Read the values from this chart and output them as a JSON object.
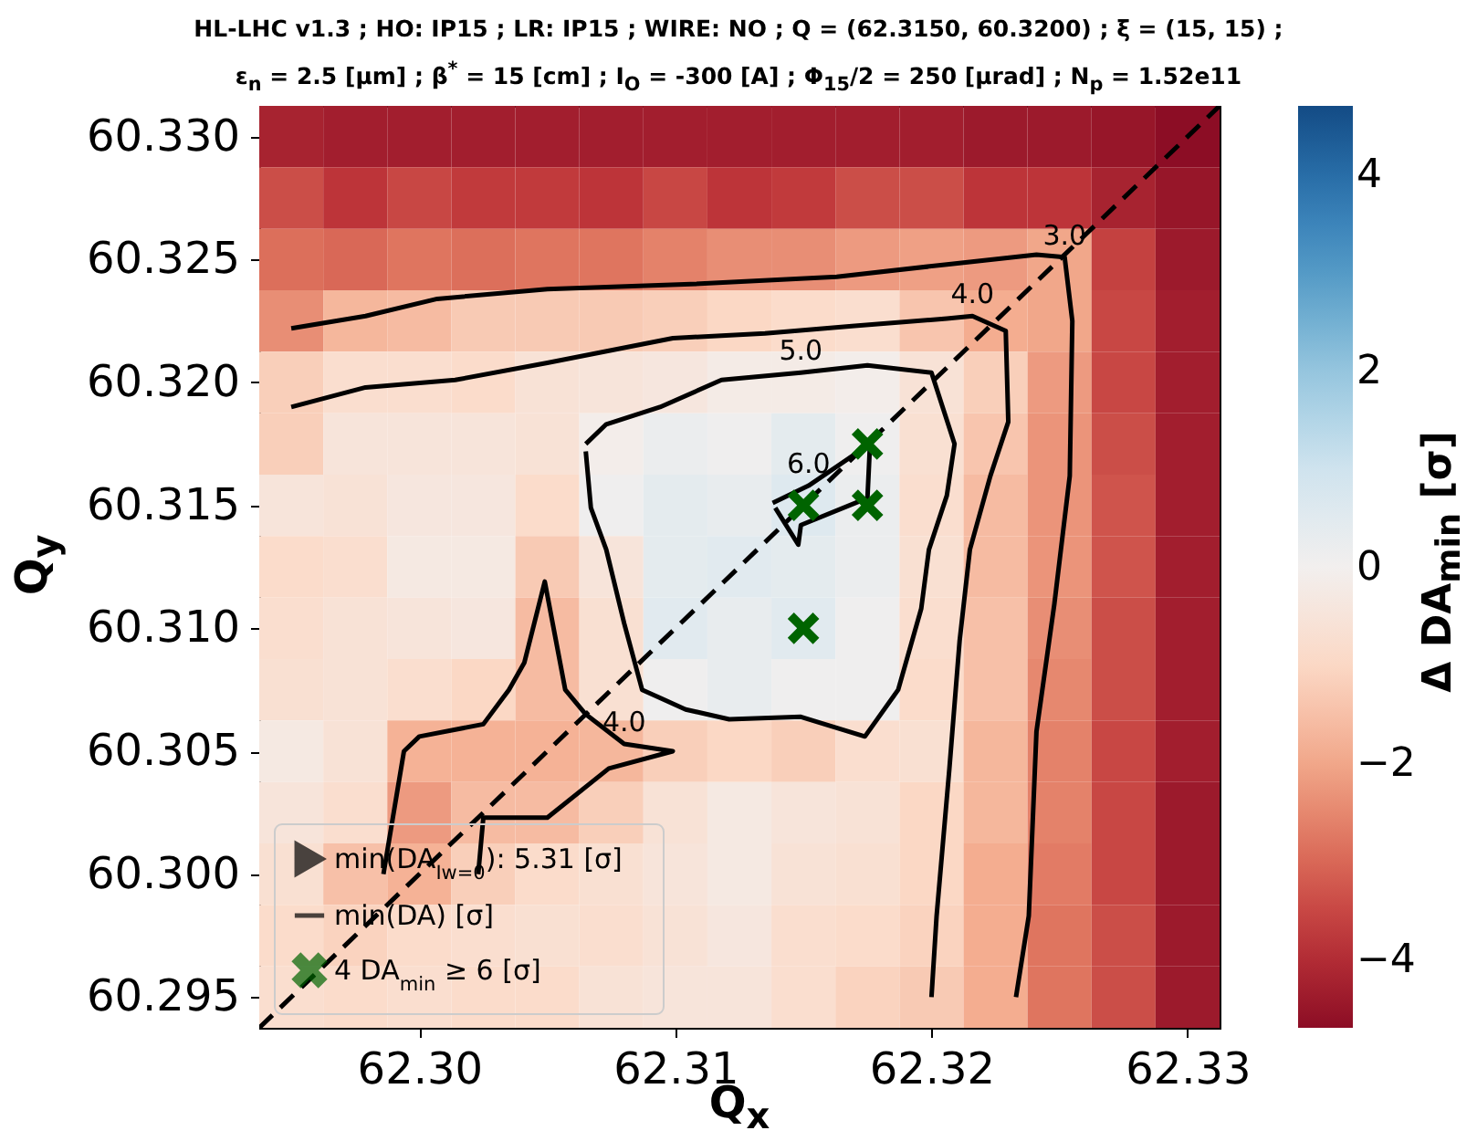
{
  "chart_data": {
    "type": "heatmap",
    "title": "HL-LHC v1.3 ; HO: IP15 ; LR: IP15 ; WIRE: NO ; Q = (62.3150, 60.3200) ; ξ = (15, 15) ;",
    "subtitle": "ε$_{n}$ = 2.5 [μm] ;  β$^{*}$ = 15 [cm] ; I$_{O}$ = -300 [A] ;  Φ$_{15}$/2 = 250 [μrad] ; N$_{p}$ = 1.52e11",
    "xlabel": "Q$_{x}$",
    "ylabel": "Q$_{y}$",
    "clabel": "Δ DA$_{min}$ [σ]",
    "xlim": [
      62.29375,
      62.33125
    ],
    "xticks": [
      {
        "value": 62.3,
        "label": "62.30"
      },
      {
        "value": 62.31,
        "label": "62.31"
      },
      {
        "value": 62.32,
        "label": "62.32"
      },
      {
        "value": 62.33,
        "label": "62.33"
      }
    ],
    "ylim": [
      60.29375,
      60.33125
    ],
    "yticks": [
      60.295,
      {
        "value": 60.3,
        "label": "60.300"
      },
      60.305,
      {
        "value": 60.31,
        "label": "60.310"
      },
      60.315,
      {
        "value": 60.32,
        "label": "60.320"
      },
      60.325,
      {
        "value": 60.33,
        "label": "60.330"
      }
    ],
    "clim": [
      -4.7,
      4.7
    ],
    "cticks": [
      -4,
      -2,
      0,
      2,
      4
    ],
    "cells": [
      [
        -4.2,
        -4.3,
        -4.3,
        -4.3,
        -4.3,
        -4.3,
        -4.3,
        -4.3,
        -4.3,
        -4.3,
        -4.3,
        -4.4,
        -4.4,
        -4.5,
        -4.7
      ],
      [
        -3.4,
        -3.8,
        -3.5,
        -3.7,
        -3.7,
        -3.8,
        -3.5,
        -3.8,
        -3.7,
        -3.4,
        -3.4,
        -3.8,
        -3.8,
        -4.2,
        -4.5
      ],
      [
        -2.9,
        -3.0,
        -2.8,
        -2.9,
        -2.8,
        -2.8,
        -2.6,
        -2.4,
        -2.4,
        -2.2,
        -2.1,
        -2.2,
        -2.0,
        -3.6,
        -4.4
      ],
      [
        -2.4,
        -1.7,
        -1.6,
        -1.3,
        -1.3,
        -1.3,
        -1.2,
        -1.0,
        -0.9,
        -0.8,
        -1.4,
        -1.9,
        -2.0,
        -3.5,
        -4.3
      ],
      [
        -1.2,
        -0.8,
        -0.8,
        -0.9,
        -0.6,
        -0.5,
        -0.4,
        -0.2,
        -0.2,
        -0.1,
        -0.6,
        -1.2,
        -2.2,
        -3.5,
        -4.3
      ],
      [
        -1.2,
        -0.5,
        -0.5,
        -0.5,
        -0.6,
        -0.1,
        0.2,
        0.1,
        0.4,
        0.1,
        -0.7,
        -1.4,
        -2.3,
        -3.4,
        -4.3
      ],
      [
        -0.5,
        -0.6,
        -0.4,
        -0.4,
        -0.9,
        0.1,
        0.4,
        0.3,
        0.6,
        0.2,
        -0.8,
        -1.6,
        -2.3,
        -3.3,
        -4.3
      ],
      [
        -0.9,
        -0.8,
        -0.3,
        -0.3,
        -1.3,
        -0.5,
        0.4,
        0.5,
        0.4,
        0.2,
        -0.7,
        -1.6,
        -2.3,
        -3.3,
        -4.3
      ],
      [
        -0.8,
        -0.6,
        -0.5,
        -0.4,
        -1.6,
        -0.7,
        0.5,
        0.3,
        0.5,
        0.1,
        -0.8,
        -1.5,
        -2.4,
        -3.4,
        -4.3
      ],
      [
        -0.7,
        -0.6,
        -0.8,
        -1.0,
        -1.6,
        -0.7,
        0.1,
        0.3,
        0.1,
        0.1,
        -0.9,
        -1.5,
        -2.5,
        -3.4,
        -4.3
      ],
      [
        -0.3,
        -0.6,
        -1.8,
        -1.8,
        -1.8,
        -1.7,
        -1.2,
        -1.0,
        -1.2,
        -0.8,
        -0.7,
        -1.7,
        -2.6,
        -3.5,
        -4.3
      ],
      [
        -0.5,
        -0.8,
        -2.2,
        -1.6,
        -1.6,
        -1.2,
        -0.6,
        -0.3,
        -0.5,
        -0.6,
        -1.0,
        -1.7,
        -2.6,
        -3.5,
        -4.4
      ],
      [
        -0.7,
        -1.5,
        -1.8,
        -1.2,
        -0.9,
        -0.7,
        -0.5,
        -0.3,
        -0.6,
        -0.7,
        -1.0,
        -1.9,
        -2.7,
        -3.5,
        -4.4
      ],
      [
        -0.9,
        -1.1,
        -0.9,
        -0.8,
        -0.7,
        -0.8,
        -0.6,
        -0.4,
        -0.8,
        -0.9,
        -1.1,
        -1.9,
        -2.8,
        -3.4,
        -4.4
      ],
      [
        -0.8,
        -0.9,
        -0.8,
        -0.9,
        -0.9,
        -0.6,
        -0.5,
        -0.5,
        -0.8,
        -1.1,
        -1.3,
        -1.9,
        -2.8,
        -3.4,
        -4.4
      ]
    ],
    "series": [
      {
        "name": "min(DA$_{Iw=0}$): 5.31 [σ]",
        "type": "scatter",
        "marker": "triangle",
        "color": "#000000"
      },
      {
        "name": "min(DA) [σ]",
        "type": "line",
        "color": "#000000",
        "x": [
          62.295,
          62.2979,
          62.3007,
          62.305,
          62.3106,
          62.3163,
          62.3206,
          62.3241,
          62.3252,
          62.3255,
          62.3254,
          62.3248,
          62.3241,
          62.3238,
          62.3233,
          null,
          62.295,
          62.2979,
          62.3014,
          62.305,
          62.3099,
          62.3135,
          62.317,
          62.3206,
          62.3216,
          62.3229,
          62.323,
          62.3223,
          62.3215,
          62.3211,
          62.3207,
          62.3202,
          62.32,
          null,
          62.2986,
          62.2994,
          62.3,
          62.3025,
          62.3035,
          62.3041,
          62.3049,
          62.3057,
          62.3065,
          62.308,
          62.3099,
          62.3074,
          62.305,
          62.3025,
          62.3023,
          null,
          62.3065,
          62.3073,
          62.3094,
          62.3118,
          62.3149,
          62.3175,
          62.32,
          62.3209,
          62.3206,
          62.3199,
          62.3196,
          62.3187,
          62.3174,
          62.3149,
          62.3121,
          62.3104,
          62.3087,
          62.308,
          62.3073,
          62.3067,
          62.3065,
          null,
          62.3138,
          62.3152,
          62.3176,
          62.3175,
          62.3149,
          62.3148,
          62.3139
        ],
        "values": [
          60.3222,
          60.3227,
          60.3234,
          60.3238,
          60.324,
          60.3243,
          60.3248,
          60.3252,
          60.3251,
          60.3225,
          60.3162,
          60.311,
          60.3058,
          60.2983,
          60.295,
          null,
          60.319,
          60.3198,
          60.3201,
          60.3208,
          60.3218,
          60.322,
          60.3223,
          60.3226,
          60.3227,
          60.3221,
          60.3184,
          60.3162,
          60.3132,
          60.3095,
          60.3043,
          60.2983,
          60.295,
          null,
          60.3,
          60.305,
          60.3056,
          60.3061,
          60.3075,
          60.3086,
          60.3119,
          60.3075,
          60.3065,
          60.3053,
          60.305,
          60.3043,
          60.3023,
          60.3023,
          60.3,
          null,
          60.3175,
          60.3183,
          60.319,
          60.3201,
          60.3204,
          60.3207,
          60.3204,
          60.3175,
          60.3154,
          60.3132,
          60.3108,
          60.3075,
          60.3056,
          60.3064,
          60.3063,
          60.3067,
          60.3075,
          60.3102,
          60.3132,
          60.3149,
          60.3172,
          null,
          60.3151,
          60.3158,
          60.3175,
          60.3153,
          60.3142,
          60.3134,
          60.3149
        ]
      },
      {
        "type": "line",
        "color": "#000000",
        "line_style": "dashed",
        "x": [
          62.29375,
          62.33125
        ],
        "values": [
          60.29375,
          60.33125
        ]
      },
      {
        "name": "4 DA$_{min}$ ≥ 6 [σ]",
        "type": "scatter",
        "marker": "cross",
        "color": "#006400",
        "x": [
          62.315,
          62.3175,
          62.3175,
          62.315
        ],
        "values": [
          60.315,
          60.3175,
          60.315,
          60.31
        ]
      }
    ],
    "annotations": [
      {
        "text": "3.0",
        "x": 62.3252,
        "y": 60.3251
      },
      {
        "text": "4.0",
        "x": 62.3216,
        "y": 60.3227
      },
      {
        "text": "4.0",
        "x": 62.308,
        "y": 60.3053
      },
      {
        "text": "5.0",
        "x": 62.3149,
        "y": 60.3204
      },
      {
        "text": "6.0",
        "x": 62.3152,
        "y": 60.3158
      }
    ],
    "legend": "bottom left",
    "grid": false
  }
}
